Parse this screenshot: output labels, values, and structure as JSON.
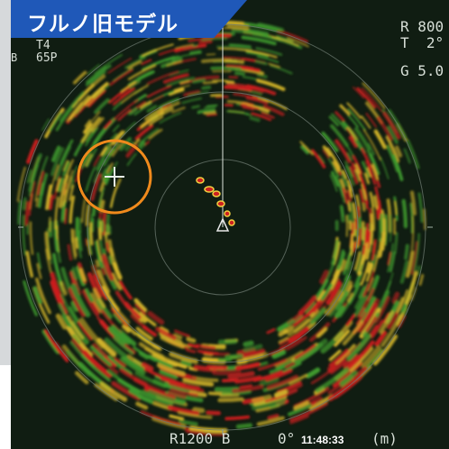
{
  "banner": {
    "label": "フルノ旧モデル",
    "color": "#1f58b8"
  },
  "osd_left": {
    "line1": "T4",
    "line2": "65P",
    "edge_char": "B"
  },
  "osd_right": {
    "range": "R 800",
    "tilt": "T  2°",
    "gain": "G 5.0"
  },
  "status_bar": {
    "range": "R1200 B",
    "bearing": "0°",
    "clock": "11:48:33",
    "unit": "(m)"
  },
  "highlight": {
    "color": "#f08a1c"
  },
  "colors": {
    "background": "#101d12",
    "echo_strong": "#cc1f1f",
    "echo_mid": "#d8b82a",
    "echo_weak": "#3f9a2e"
  },
  "icons": {
    "cursor": "crosshair-icon",
    "own_ship": "ship-icon"
  }
}
